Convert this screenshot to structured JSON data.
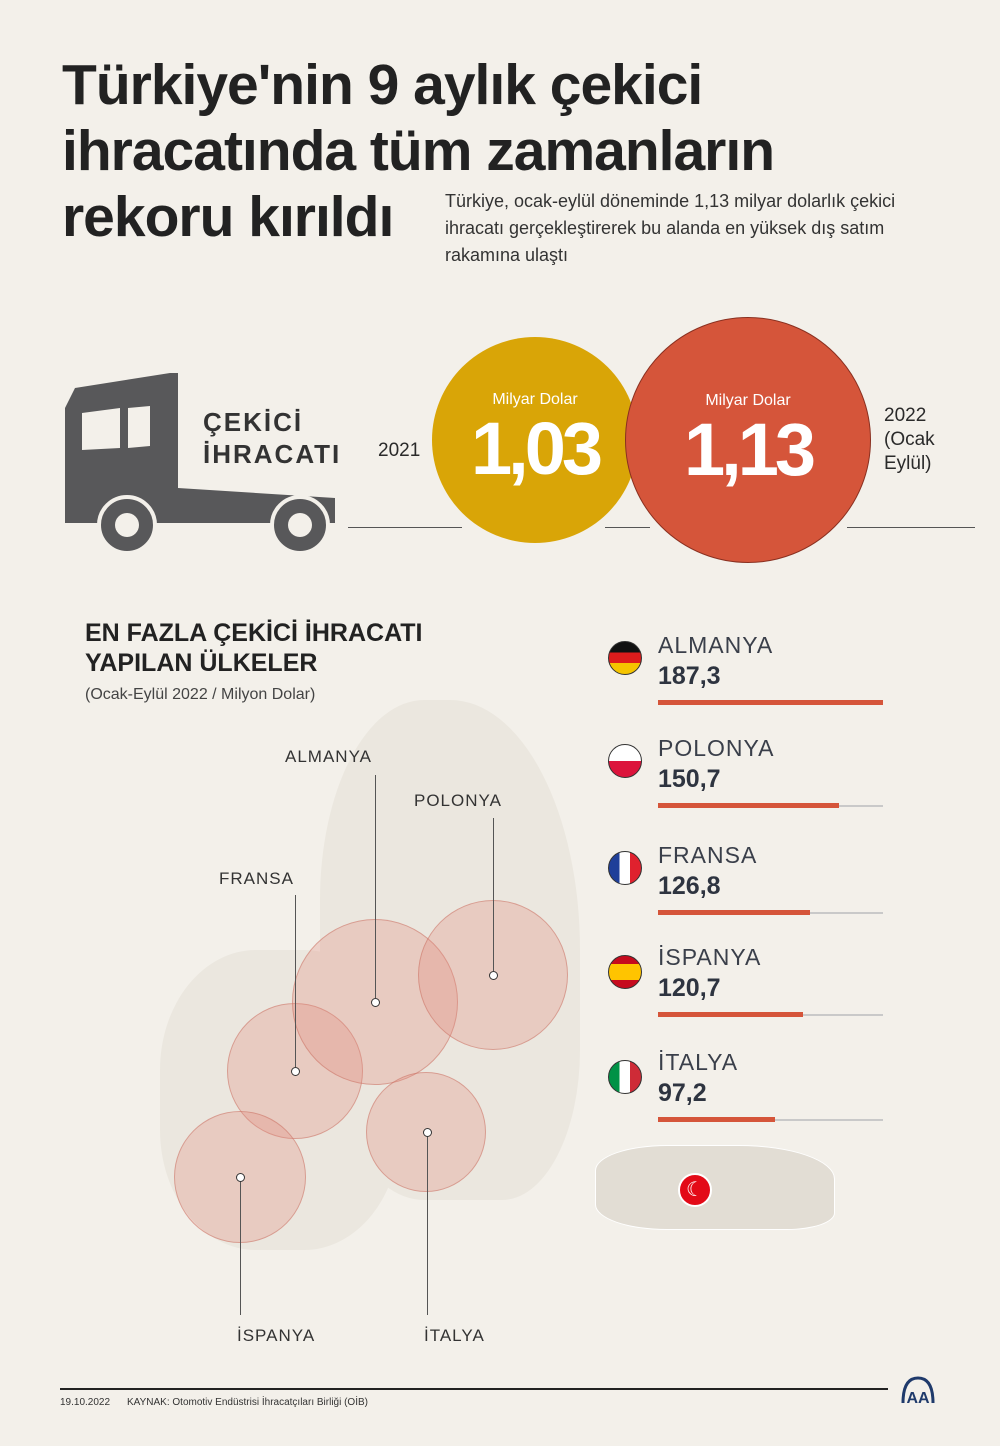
{
  "title": "Türkiye'nin 9 aylık çekici ihracatında tüm zamanların rekoru kırıldı",
  "subtitle": "Türkiye, ocak-eylül döneminde 1,13 milyar dolarlık çekici ihracatı gerçekleştirerek bu alanda en yüksek dış satım rakamına ulaştı",
  "export_label": [
    "ÇEKİCİ",
    "İHRACATI"
  ],
  "comparison": [
    {
      "year": "2021",
      "unit": "Milyar Dolar",
      "value": "1,03",
      "color": "#d9a507"
    },
    {
      "year": "2022 (Ocak Eylül)",
      "unit": "Milyar Dolar",
      "value": "1,13",
      "color": "#d5553a"
    }
  ],
  "section": {
    "title": "EN FAZLA ÇEKİCİ İHRACATI YAPILAN ÜLKELER",
    "subtitle": "(Ocak-Eylül 2022 / Milyon Dolar)"
  },
  "chart_data": {
    "type": "bar",
    "orientation": "horizontal",
    "categories": [
      "ALMANYA",
      "POLONYA",
      "FRANSA",
      "İSPANYA",
      "İTALYA"
    ],
    "values": [
      187.3,
      150.7,
      126.8,
      120.7,
      97.2
    ],
    "value_labels": [
      "187,3",
      "150,7",
      "126,8",
      "120,7",
      "97,2"
    ],
    "xlim": [
      0,
      187.3
    ],
    "bar_color": "#d5553a"
  },
  "map_labels": [
    "ALMANYA",
    "POLONYA",
    "FRANSA",
    "İSPANYA",
    "İTALYA"
  ],
  "footer": {
    "date": "19.10.2022",
    "source": "KAYNAK: Otomotiv Endüstrisi İhracatçıları Birliği (OİB)",
    "logo": "AA"
  }
}
